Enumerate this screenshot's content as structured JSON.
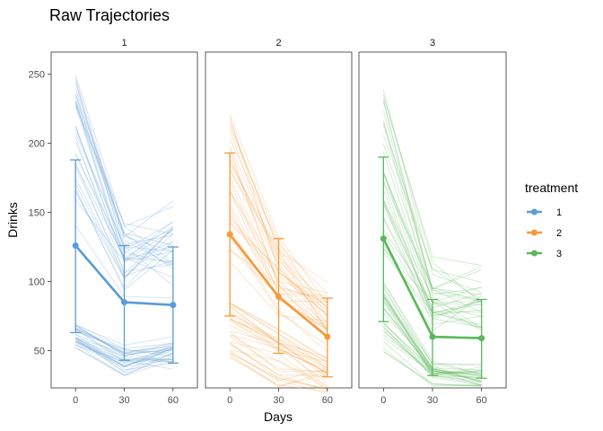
{
  "chart_data": {
    "type": "line",
    "title": "Raw Trajectories",
    "xlabel": "Days",
    "ylabel": "Drinks",
    "x": [
      0,
      30,
      60
    ],
    "x_ticks": [
      "0",
      "30",
      "60"
    ],
    "y_ticks": [
      50,
      100,
      150,
      200,
      250
    ],
    "ylim": [
      23,
      266
    ],
    "facets": [
      "1",
      "2",
      "3"
    ],
    "legend": {
      "title": "treatment",
      "position": "right",
      "entries": [
        "1",
        "2",
        "3"
      ]
    },
    "colors": [
      "#5B9BD5",
      "#F59A3B",
      "#5BB85B"
    ],
    "series": [
      {
        "name": "1",
        "mean": [
          126,
          85,
          83
        ],
        "lower": [
          63,
          43,
          41
        ],
        "upper": [
          188,
          126,
          125
        ],
        "raw_groups": [
          {
            "start": [
              140,
              250
            ],
            "mid": [
              80,
              150
            ],
            "end": [
              70,
              175
            ]
          },
          {
            "start": [
              52,
              72
            ],
            "mid": [
              28,
              60
            ],
            "end": [
              34,
              62
            ]
          }
        ]
      },
      {
        "name": "2",
        "mean": [
          134,
          89,
          60
        ],
        "lower": [
          75,
          48,
          31
        ],
        "upper": [
          193,
          131,
          88
        ],
        "raw_groups": [
          {
            "start": [
              110,
              222
            ],
            "mid": [
              65,
              140
            ],
            "end": [
              40,
              105
            ]
          },
          {
            "start": [
              45,
              85
            ],
            "mid": [
              22,
              70
            ],
            "end": [
              16,
              48
            ]
          }
        ]
      },
      {
        "name": "3",
        "mean": [
          131,
          60,
          59
        ],
        "lower": [
          71,
          32,
          30
        ],
        "upper": [
          190,
          87,
          87
        ],
        "raw_groups": [
          {
            "start": [
              120,
              243
            ],
            "mid": [
              55,
              122
            ],
            "end": [
              55,
              115
            ]
          },
          {
            "start": [
              48,
              100
            ],
            "mid": [
              22,
              45
            ],
            "end": [
              20,
              42
            ]
          }
        ]
      }
    ]
  }
}
